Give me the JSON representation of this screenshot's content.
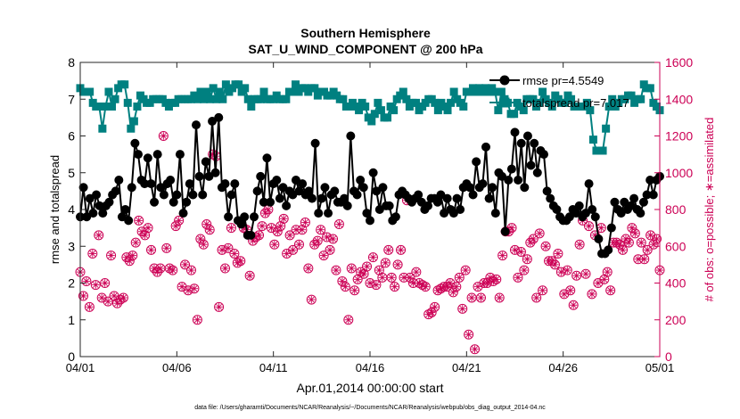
{
  "chart_data": {
    "type": "line",
    "title_line1": "Southern Hemisphere",
    "title_line2": "SAT_U_WIND_COMPONENT @ 200 hPa",
    "xlabel": "Apr.01,2014 00:00:00 start",
    "ylabel_left": "rmse and totalspread",
    "ylabel_right": "# of obs: o=possible; ∗=assimilated",
    "footer": "data file: /Users/gharamti/Documents/NCAR/Reanalysis/~/Documents/NCAR/Reanalysis/webpub/obs_diag_output_2014-04.nc",
    "xlim": [
      0,
      30
    ],
    "ylim_left": [
      0,
      8
    ],
    "ylim_right": [
      0,
      1600
    ],
    "x_ticks": [
      0,
      5,
      10,
      15,
      20,
      25,
      30
    ],
    "x_tick_labels": [
      "04/01",
      "04/06",
      "04/11",
      "04/16",
      "04/21",
      "04/26",
      "05/01"
    ],
    "y_ticks_left": [
      0,
      1,
      2,
      3,
      4,
      5,
      6,
      7,
      8
    ],
    "y_tick_labels_left": [
      "0",
      "1",
      "2",
      "3",
      "4",
      "5",
      "6",
      "7",
      "8"
    ],
    "y_ticks_right": [
      0,
      200,
      400,
      600,
      800,
      1000,
      1200,
      1400,
      1600
    ],
    "y_tick_labels_right": [
      "0",
      "200",
      "400",
      "600",
      "800",
      "1000",
      "1200",
      "1400",
      "1600"
    ],
    "legend_position": "top-right",
    "colors": {
      "rmse": "#000000",
      "totalspread": "#008080",
      "obs": "#cc0055"
    },
    "series": [
      {
        "name": "rmse pr=4.5549",
        "axis": "left",
        "values": [
          3.8,
          4.6,
          3.8,
          4.3,
          3.9,
          4.4,
          4.1,
          3.9,
          4.1,
          4.2,
          4.4,
          4.5,
          4.8,
          3.8,
          4.0,
          3.7,
          4.6,
          5.8,
          5.5,
          4.8,
          4.7,
          5.4,
          4.7,
          4.2,
          5.5,
          4.6,
          4.4,
          4.7,
          4.8,
          4.2,
          4.4,
          5.5,
          3.9,
          4.2,
          4.7,
          4.4,
          6.3,
          4.9,
          4.4,
          5.3,
          4.9,
          6.4,
          5.0,
          6.5,
          4.6,
          4.7,
          3.8,
          4.4,
          4.7,
          3.7,
          3.6,
          3.8,
          3.3,
          3.3,
          3.8,
          4.5,
          4.9,
          4.2,
          5.4,
          4.2,
          4.7,
          4.8,
          4.3,
          4.6,
          4.1,
          4.5,
          4.4,
          4.8,
          4.5,
          4.7,
          4.4,
          4.5,
          4.3,
          5.8,
          3.9,
          4.3,
          4.6,
          3.9,
          4.4,
          4.5,
          4.2,
          4.2,
          4.3,
          4.1,
          6.0,
          4.5,
          4.4,
          4.8,
          4.6,
          3.9,
          3.7,
          5.0,
          4.5,
          4.0,
          4.6,
          4.1,
          4.1,
          3.7,
          3.8,
          4.4,
          4.5,
          4.4,
          4.3,
          4.2,
          4.3,
          4.4,
          4.2,
          4.0,
          4.1,
          4.3,
          4.3,
          4.2,
          4.4,
          3.9,
          4.3,
          4.0,
          3.9,
          4.3,
          4.0,
          4.6,
          4.7,
          4.6,
          4.4,
          5.3,
          4.6,
          4.7,
          5.7,
          4.3,
          4.6,
          3.9,
          5.0,
          4.9,
          3.4,
          4.8,
          5.1,
          6.1,
          4.8,
          5.8,
          4.6,
          6.0,
          5.2,
          5.8,
          5.0,
          5.6,
          5.5,
          4.5,
          4.3,
          4.1,
          4.0,
          3.8,
          3.7,
          3.7,
          3.8,
          4.0,
          3.9,
          4.1,
          3.8,
          3.9,
          4.7,
          4.0,
          3.8,
          3.2,
          2.8,
          2.8,
          2.9,
          3.5,
          4.2,
          4.0,
          3.9,
          4.2,
          4.0,
          4.1,
          4.3,
          4.0,
          3.9,
          4.2,
          4.4,
          4.8,
          4.4,
          4.8,
          4.9
        ]
      },
      {
        "name": "totalspread pr=7.017",
        "axis": "left",
        "values": [
          7.3,
          7.2,
          7.2,
          7.2,
          6.9,
          6.8,
          6.8,
          6.2,
          6.8,
          7.2,
          6.8,
          7.0,
          7.3,
          7.4,
          7.4,
          6.9,
          6.2,
          6.4,
          6.8,
          7.1,
          7.0,
          6.9,
          6.9,
          7.0,
          7.0,
          7.0,
          7.0,
          6.9,
          6.8,
          6.9,
          6.9,
          7.0,
          7.0,
          7.0,
          7.0,
          7.0,
          7.1,
          7.0,
          7.2,
          7.0,
          7.2,
          7.0,
          7.3,
          7.0,
          7.2,
          7.0,
          7.4,
          7.2,
          7.3,
          7.4,
          7.4,
          7.2,
          7.3,
          7.0,
          6.8,
          7.0,
          7.0,
          7.0,
          7.2,
          7.0,
          7.0,
          7.0,
          7.1,
          7.0,
          7.0,
          7.0,
          7.2,
          7.2,
          7.4,
          7.2,
          7.3,
          7.3,
          7.2,
          7.3,
          7.3,
          7.1,
          7.2,
          7.2,
          7.1,
          7.1,
          7.2,
          7.1,
          7.0,
          7.0,
          6.8,
          6.8,
          6.9,
          6.8,
          6.7,
          6.9,
          6.8,
          6.5,
          6.4,
          6.6,
          6.9,
          6.7,
          6.5,
          6.5,
          6.8,
          6.7,
          7.0,
          7.1,
          7.2,
          7.0,
          6.8,
          6.9,
          6.9,
          6.7,
          6.8,
          6.9,
          7.0,
          7.0,
          6.9,
          6.7,
          6.9,
          6.8,
          6.7,
          6.9,
          7.2,
          7.0,
          6.9,
          6.8,
          7.2,
          7.2,
          7.3,
          7.2,
          7.3,
          7.2,
          7.3,
          7.2,
          7.3,
          7.2,
          6.7,
          7.2,
          7.0,
          6.9,
          6.6,
          6.6,
          6.9,
          6.8,
          6.7,
          7.0,
          7.0,
          7.0,
          6.8,
          6.9,
          7.2,
          7.0,
          6.9,
          6.8,
          7.1,
          7.0,
          6.9,
          6.9,
          7.1,
          7.0,
          6.8,
          6.8,
          6.8,
          6.8,
          6.9,
          6.7,
          5.9,
          5.6,
          5.6,
          5.6,
          6.2,
          6.8,
          7.0,
          6.8,
          6.9,
          7.0,
          7.0,
          7.1,
          7.1,
          6.9,
          7.0,
          7.0,
          7.4,
          7.3,
          7.3,
          6.9,
          6.8,
          6.7
        ]
      },
      {
        "name": "# of obs possible / assimilated",
        "axis": "right",
        "values": [
          460,
          330,
          410,
          270,
          560,
          390,
          660,
          320,
          400,
          300,
          550,
          330,
          290,
          310,
          320,
          540,
          520,
          550,
          620,
          740,
          680,
          660,
          700,
          580,
          480,
          460,
          480,
          1200,
          590,
          480,
          470,
          710,
          740,
          380,
          500,
          360,
          470,
          370,
          200,
          640,
          610,
          720,
          690,
          1100,
          1090,
          270,
          580,
          480,
          590,
          700,
          560,
          510,
          520,
          700,
          690,
          440,
          630,
          650,
          660,
          710,
          780,
          800,
          700,
          610,
          680,
          710,
          750,
          560,
          660,
          580,
          690,
          610,
          690,
          730,
          480,
          310,
          610,
          630,
          690,
          550,
          650,
          580,
          640,
          470,
          720,
          410,
          380,
          200,
          480,
          360,
          420,
          460,
          450,
          490,
          400,
          540,
          390,
          470,
          430,
          510,
          580,
          430,
          380,
          500,
          580,
          430,
          850,
          430,
          400,
          460,
          400,
          390,
          380,
          230,
          240,
          270,
          360,
          370,
          380,
          380,
          400,
          350,
          380,
          430,
          260,
          470,
          120,
          320,
          40,
          380,
          320,
          400,
          400,
          430,
          410,
          420,
          320,
          550,
          680,
          680,
          700,
          580,
          430,
          570,
          470,
          530,
          620,
          640,
          320,
          670,
          360,
          600,
          520,
          520,
          500,
          560,
          460,
          340,
          470,
          360,
          280,
          440,
          610,
          740,
          450,
          710,
          340,
          660,
          400,
          700,
          420,
          460,
          360,
          620,
          620,
          610,
          580,
          640,
          620,
          700,
          670,
          530,
          620,
          530,
          580,
          660,
          610,
          640,
          470
        ]
      }
    ]
  }
}
